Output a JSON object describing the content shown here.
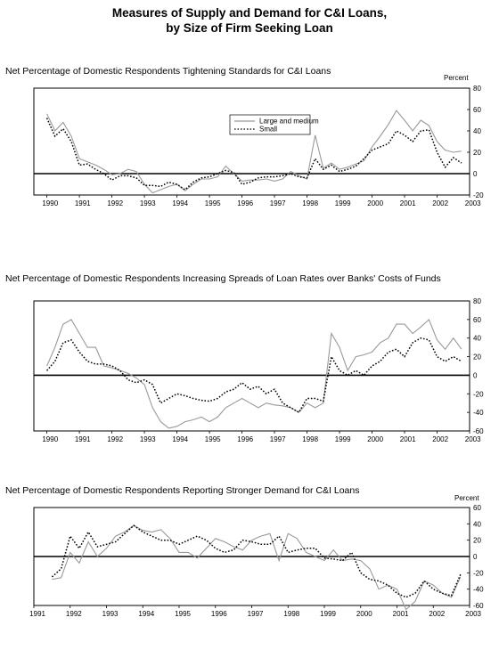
{
  "figure": {
    "title_line1": "Measures of Supply and Demand for C&I Loans,",
    "title_line2": "by Size of Firm Seeking Loan"
  },
  "chart_data": [
    {
      "type": "line",
      "title": "Net Percentage of Domestic Respondents Tightening Standards for C&I Loans",
      "ylabel": "Percent",
      "ylim": [
        -20,
        80
      ],
      "yticks": [
        -20,
        0,
        20,
        40,
        60,
        80
      ],
      "xlim": [
        1989.6,
        2003.0
      ],
      "xticks": [
        "1990",
        "1991",
        "1992",
        "1993",
        "1994",
        "1995",
        "1996",
        "1997",
        "1998",
        "1999",
        "2000",
        "2001",
        "2002",
        "2003"
      ],
      "zero_line": true,
      "legend": "top-center",
      "series": [
        {
          "name": "Large and medium",
          "style": "solid",
          "color": "#999999",
          "x": [
            1990.0,
            1990.25,
            1990.5,
            1990.75,
            1991.0,
            1991.25,
            1991.5,
            1991.75,
            1992.0,
            1992.25,
            1992.5,
            1992.75,
            1993.0,
            1993.25,
            1993.5,
            1993.75,
            1994.0,
            1994.25,
            1994.5,
            1994.75,
            1995.0,
            1995.25,
            1995.5,
            1995.75,
            1996.0,
            1996.25,
            1996.5,
            1996.75,
            1997.0,
            1997.25,
            1997.5,
            1997.75,
            1998.0,
            1998.25,
            1998.5,
            1998.75,
            1999.0,
            1999.25,
            1999.5,
            1999.75,
            2000.0,
            2000.25,
            2000.5,
            2000.75,
            2001.0,
            2001.25,
            2001.5,
            2001.75,
            2002.0,
            2002.25,
            2002.5,
            2002.75
          ],
          "y": [
            56,
            40,
            48,
            35,
            14,
            11,
            8,
            4,
            -1,
            0,
            4,
            2,
            -10,
            -18,
            -15,
            -12,
            -10,
            -16,
            -10,
            -5,
            -5,
            -3,
            7,
            0,
            -7,
            -6,
            -6,
            -5,
            -7,
            -5,
            2,
            -2,
            -5,
            36,
            5,
            10,
            4,
            6,
            9,
            12,
            25,
            35,
            46,
            59,
            50,
            40,
            50,
            45,
            30,
            22,
            20,
            21
          ]
        },
        {
          "name": "Small",
          "style": "dotted",
          "color": "#000000",
          "x": [
            1990.0,
            1990.25,
            1990.5,
            1990.75,
            1991.0,
            1991.25,
            1991.5,
            1991.75,
            1992.0,
            1992.25,
            1992.5,
            1992.75,
            1993.0,
            1993.25,
            1993.5,
            1993.75,
            1994.0,
            1994.25,
            1994.5,
            1994.75,
            1995.0,
            1995.25,
            1995.5,
            1995.75,
            1996.0,
            1996.25,
            1996.5,
            1996.75,
            1997.0,
            1997.25,
            1997.5,
            1997.75,
            1998.0,
            1998.25,
            1998.5,
            1998.75,
            1999.0,
            1999.25,
            1999.5,
            1999.75,
            2000.0,
            2000.25,
            2000.5,
            2000.75,
            2001.0,
            2001.25,
            2001.5,
            2001.75,
            2002.0,
            2002.25,
            2002.5,
            2002.75
          ],
          "y": [
            52,
            35,
            42,
            30,
            8,
            9,
            4,
            0,
            -6,
            -2,
            -2,
            -4,
            -11,
            -11,
            -12,
            -8,
            -10,
            -15,
            -8,
            -4,
            -3,
            0,
            3,
            1,
            -10,
            -8,
            -4,
            -3,
            -3,
            -2,
            0,
            -3,
            -4,
            14,
            4,
            8,
            2,
            4,
            7,
            14,
            22,
            25,
            28,
            40,
            36,
            30,
            40,
            41,
            20,
            6,
            15,
            10
          ]
        }
      ]
    },
    {
      "type": "line",
      "title": "Net Percentage of Domestic Respondents Increasing Spreads of Loan Rates over Banks' Costs of Funds",
      "ylabel": "",
      "ylim": [
        -60,
        80
      ],
      "yticks": [
        -60,
        -40,
        -20,
        0,
        20,
        40,
        60,
        80
      ],
      "xlim": [
        1989.6,
        2003.0
      ],
      "xticks": [
        "1990",
        "1991",
        "1992",
        "1993",
        "1994",
        "1995",
        "1996",
        "1997",
        "1998",
        "1999",
        "2000",
        "2001",
        "2002",
        "2003"
      ],
      "zero_line": true,
      "series": [
        {
          "name": "Large and medium",
          "style": "solid",
          "color": "#999999",
          "x": [
            1990.0,
            1990.25,
            1990.5,
            1990.75,
            1991.0,
            1991.25,
            1991.5,
            1991.75,
            1992.0,
            1992.25,
            1992.5,
            1992.75,
            1993.0,
            1993.25,
            1993.5,
            1993.75,
            1994.0,
            1994.25,
            1994.5,
            1994.75,
            1995.0,
            1995.25,
            1995.5,
            1995.75,
            1996.0,
            1996.25,
            1996.5,
            1996.75,
            1997.0,
            1997.25,
            1997.5,
            1997.75,
            1998.0,
            1998.25,
            1998.5,
            1998.75,
            1999.0,
            1999.25,
            1999.5,
            1999.75,
            2000.0,
            2000.25,
            2000.5,
            2000.75,
            2001.0,
            2001.25,
            2001.5,
            2001.75,
            2002.0,
            2002.25,
            2002.5,
            2002.75
          ],
          "y": [
            10,
            30,
            55,
            60,
            45,
            30,
            30,
            10,
            8,
            5,
            2,
            -3,
            -10,
            -35,
            -50,
            -57,
            -55,
            -50,
            -48,
            -45,
            -50,
            -45,
            -35,
            -30,
            -25,
            -30,
            -35,
            -30,
            -32,
            -33,
            -35,
            -40,
            -30,
            -35,
            -30,
            45,
            30,
            5,
            20,
            22,
            25,
            35,
            40,
            55,
            55,
            45,
            52,
            60,
            38,
            28,
            40,
            28
          ]
        },
        {
          "name": "Small",
          "style": "dotted",
          "color": "#000000",
          "x": [
            1990.0,
            1990.25,
            1990.5,
            1990.75,
            1991.0,
            1991.25,
            1991.5,
            1991.75,
            1992.0,
            1992.25,
            1992.5,
            1992.75,
            1993.0,
            1993.25,
            1993.5,
            1993.75,
            1994.0,
            1994.25,
            1994.5,
            1994.75,
            1995.0,
            1995.25,
            1995.5,
            1995.75,
            1996.0,
            1996.25,
            1996.5,
            1996.75,
            1997.0,
            1997.25,
            1997.5,
            1997.75,
            1998.0,
            1998.25,
            1998.5,
            1998.75,
            1999.0,
            1999.25,
            1999.5,
            1999.75,
            2000.0,
            2000.25,
            2000.5,
            2000.75,
            2001.0,
            2001.25,
            2001.5,
            2001.75,
            2002.0,
            2002.25,
            2002.5,
            2002.75
          ],
          "y": [
            5,
            15,
            35,
            38,
            25,
            15,
            12,
            12,
            10,
            5,
            -5,
            -8,
            -5,
            -10,
            -30,
            -25,
            -20,
            -22,
            -25,
            -27,
            -28,
            -25,
            -18,
            -15,
            -8,
            -15,
            -12,
            -20,
            -15,
            -30,
            -35,
            -40,
            -25,
            -25,
            -28,
            20,
            5,
            0,
            5,
            0,
            10,
            15,
            25,
            28,
            20,
            35,
            40,
            38,
            20,
            15,
            20,
            15
          ]
        }
      ]
    },
    {
      "type": "line",
      "title": "Net Percentage of Domestic Respondents Reporting Stronger Demand for C&I Loans",
      "ylabel": "Percent",
      "ylim": [
        -60,
        60
      ],
      "yticks": [
        -60,
        -40,
        -20,
        0,
        20,
        40,
        60
      ],
      "xlim": [
        1991.0,
        2003.0
      ],
      "xticks": [
        "1991",
        "1992",
        "1993",
        "1994",
        "1995",
        "1996",
        "1997",
        "1998",
        "1999",
        "2000",
        "2001",
        "2002",
        "2003"
      ],
      "zero_line": true,
      "series": [
        {
          "name": "Large and medium",
          "style": "solid",
          "color": "#999999",
          "x": [
            1991.5,
            1991.75,
            1992.0,
            1992.25,
            1992.5,
            1992.75,
            1993.0,
            1993.25,
            1993.5,
            1993.75,
            1994.0,
            1994.25,
            1994.5,
            1994.75,
            1995.0,
            1995.25,
            1995.5,
            1995.75,
            1996.0,
            1996.25,
            1996.5,
            1996.75,
            1997.0,
            1997.25,
            1997.5,
            1997.75,
            1998.0,
            1998.25,
            1998.5,
            1998.75,
            1999.0,
            1999.25,
            1999.5,
            1999.75,
            2000.0,
            2000.25,
            2000.5,
            2000.75,
            2001.0,
            2001.25,
            2001.5,
            2001.75,
            2002.0,
            2002.25,
            2002.5,
            2002.75
          ],
          "y": [
            -28,
            -26,
            5,
            -8,
            18,
            0,
            10,
            25,
            30,
            38,
            32,
            30,
            33,
            22,
            5,
            5,
            -2,
            10,
            22,
            18,
            12,
            8,
            20,
            25,
            28,
            -5,
            28,
            22,
            5,
            0,
            -5,
            8,
            -5,
            -3,
            -5,
            -15,
            -40,
            -35,
            -40,
            -65,
            -55,
            -30,
            -35,
            -45,
            -50,
            -25
          ]
        },
        {
          "name": "Small",
          "style": "dotted",
          "color": "#000000",
          "x": [
            1991.5,
            1991.75,
            1992.0,
            1992.25,
            1992.5,
            1992.75,
            1993.0,
            1993.25,
            1993.5,
            1993.75,
            1994.0,
            1994.25,
            1994.5,
            1994.75,
            1995.0,
            1995.25,
            1995.5,
            1995.75,
            1996.0,
            1996.25,
            1996.5,
            1996.75,
            1997.0,
            1997.25,
            1997.5,
            1997.75,
            1998.0,
            1998.25,
            1998.5,
            1998.75,
            1999.0,
            1999.25,
            1999.5,
            1999.75,
            2000.0,
            2000.25,
            2000.5,
            2000.75,
            2001.0,
            2001.25,
            2001.5,
            2001.75,
            2002.0,
            2002.25,
            2002.5,
            2002.75
          ],
          "y": [
            -25,
            -15,
            25,
            10,
            30,
            12,
            15,
            18,
            28,
            38,
            30,
            25,
            20,
            20,
            15,
            20,
            25,
            20,
            10,
            5,
            8,
            20,
            18,
            15,
            15,
            25,
            5,
            8,
            10,
            10,
            -2,
            -3,
            -5,
            5,
            -20,
            -28,
            -30,
            -35,
            -45,
            -50,
            -45,
            -30,
            -40,
            -45,
            -48,
            -22
          ]
        }
      ]
    }
  ]
}
